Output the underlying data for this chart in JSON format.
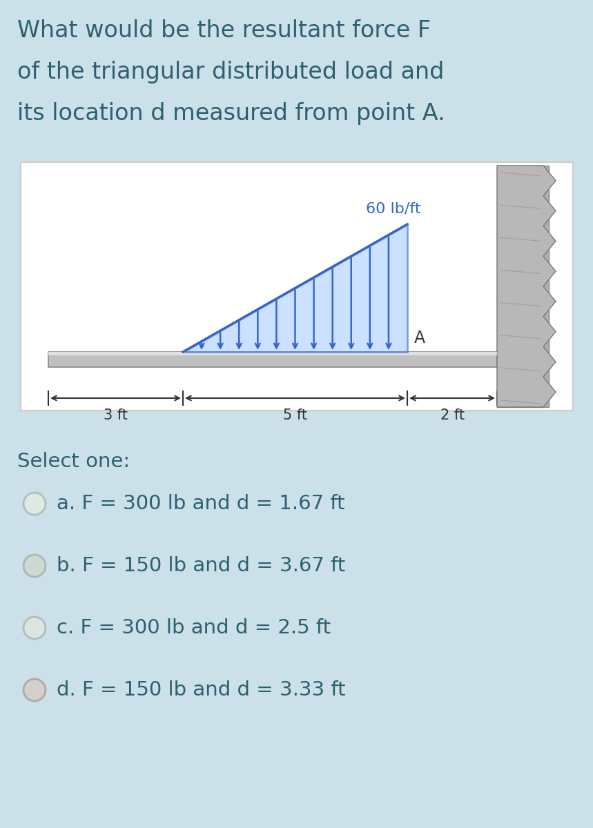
{
  "bg_color": "#cce0ea",
  "title_lines": [
    "What would be the resultant force F",
    "of the triangular distributed load and",
    "its location d measured from point A."
  ],
  "title_fontsize": 24,
  "title_color": "#2d6070",
  "diagram_bg": "#ffffff",
  "diagram_border": "#cccccc",
  "load_label": "60 lb/ft",
  "load_label_color": "#3366cc",
  "load_label_fontsize": 16,
  "beam_color": "#aaaaaa",
  "beam_edge_color": "#888888",
  "arrow_color": "#3366cc",
  "triangle_fill": "#aaccff",
  "triangle_edge": "#3366cc",
  "wall_color": "#aaaaaa",
  "wall_edge": "#888888",
  "point_A_label": "A",
  "dim_3ft": "3 ft",
  "dim_5ft": "5 ft",
  "dim_2ft": "2 ft",
  "select_text": "Select one:",
  "select_fontsize": 21,
  "select_color": "#2d6070",
  "options": [
    "a. F = 300 lb and d = 1.67 ft",
    "b. F = 150 lb and d = 3.67 ft",
    "c. F = 300 lb and d = 2.5 ft",
    "d. F = 150 lb and d = 3.33 ft"
  ],
  "option_fontsize": 21,
  "option_color": "#2d6070"
}
